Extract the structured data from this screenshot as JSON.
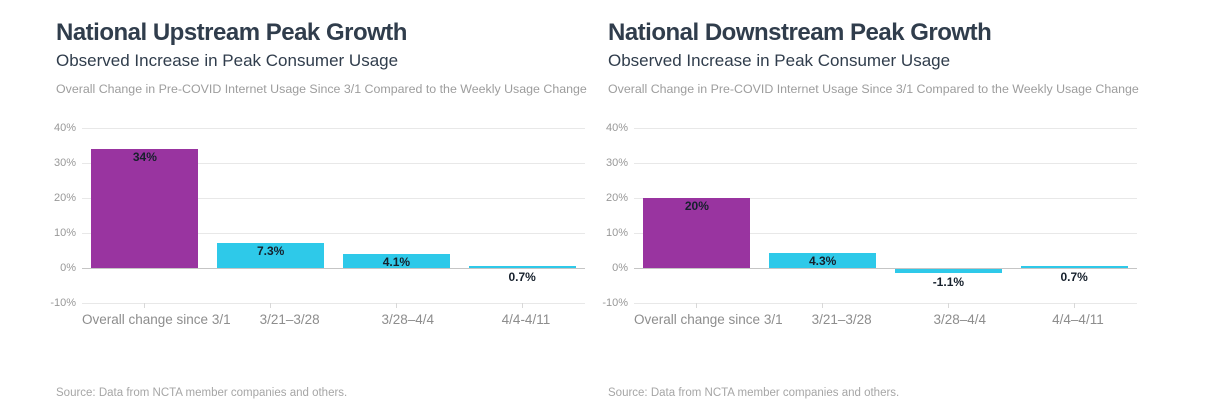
{
  "colors": {
    "highlight_bar": "#9934a0",
    "weekly_bar": "#2ec9e9",
    "title_text": "#303d4c"
  },
  "chart_data": [
    {
      "type": "bar",
      "title": "National Upstream Peak Growth",
      "subtitle": "Observed Increase in Peak Consumer Usage",
      "caption": "Overall Change in Pre-COVID Internet Usage Since 3/1 Compared to the Weekly Usage Change",
      "source": "Source: Data from NCTA member companies and others.",
      "categories": [
        "Overall change since 3/1",
        "3/21–3/28",
        "3/28–4/4",
        "4/4-4/11"
      ],
      "values": [
        34,
        7.3,
        4.1,
        0.7
      ],
      "value_labels": [
        "34%",
        "7.3%",
        "4.1%",
        "0.7%"
      ],
      "bar_colors": [
        "#9934a0",
        "#2ec9e9",
        "#2ec9e9",
        "#2ec9e9"
      ],
      "xlabel": "",
      "ylabel": "",
      "ylim": [
        -10,
        40
      ],
      "y_tick_values": [
        40,
        30,
        20,
        10,
        0,
        -10
      ],
      "y_tick_labels": [
        "40%",
        "30%",
        "20%",
        "10%",
        "0%",
        "-10%"
      ],
      "grid": "horizontal",
      "legend": "none"
    },
    {
      "type": "bar",
      "title": "National Downstream Peak Growth",
      "subtitle": "Observed Increase in Peak Consumer Usage",
      "caption": "Overall Change in Pre-COVID Internet Usage Since 3/1 Compared to the Weekly Usage Change",
      "source": "Source: Data from NCTA member companies and others.",
      "categories": [
        "Overall change since 3/1",
        "3/21–3/28",
        "3/28–4/4",
        "4/4–4/11"
      ],
      "values": [
        20,
        4.3,
        -1.1,
        0.7
      ],
      "value_labels": [
        "20%",
        "4.3%",
        "-1.1%",
        "0.7%"
      ],
      "bar_colors": [
        "#9934a0",
        "#2ec9e9",
        "#2ec9e9",
        "#2ec9e9"
      ],
      "xlabel": "",
      "ylabel": "",
      "ylim": [
        -10,
        40
      ],
      "y_tick_values": [
        40,
        30,
        20,
        10,
        0,
        -10
      ],
      "y_tick_labels": [
        "40%",
        "30%",
        "20%",
        "10%",
        "0%",
        "-10%"
      ],
      "grid": "horizontal",
      "legend": "none"
    }
  ]
}
